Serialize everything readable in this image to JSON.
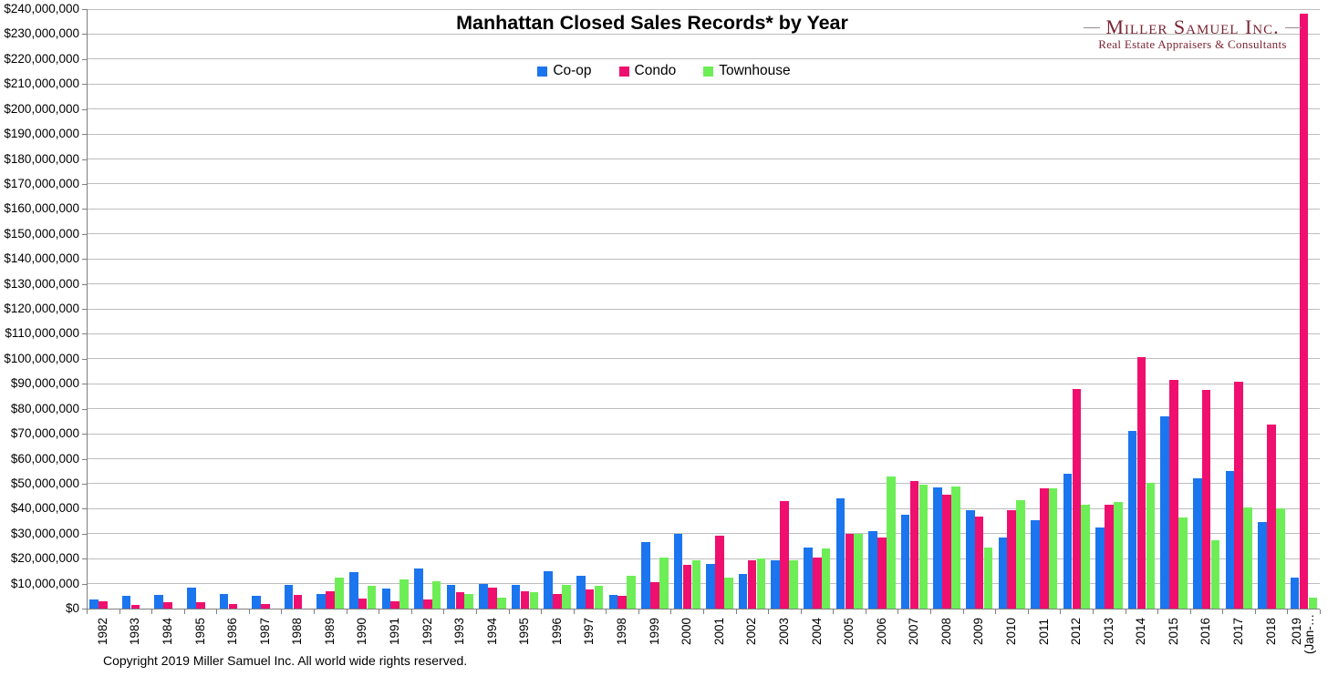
{
  "page": {
    "background": "#ffffff"
  },
  "logo": {
    "name": "Miller Samuel Inc.",
    "tagline": "Real Estate Appraisers & Consultants",
    "color": "#7b2433"
  },
  "footer": {
    "copyright": "Copyright 2019 Miller Samuel Inc.  All world wide rights reserved."
  },
  "chart_data": {
    "type": "bar",
    "title": "Manhattan Closed Sales Records* by Year",
    "xlabel": "",
    "ylabel": "",
    "ylim": [
      0,
      240000000
    ],
    "y_tick_step": 10000000,
    "grid": true,
    "legend_position": "top-center",
    "y_tick_labels": [
      "$0",
      "$10,000,000",
      "$20,000,000",
      "$30,000,000",
      "$40,000,000",
      "$50,000,000",
      "$60,000,000",
      "$70,000,000",
      "$80,000,000",
      "$90,000,000",
      "$100,000,000",
      "$110,000,000",
      "$120,000,000",
      "$130,000,000",
      "$140,000,000",
      "$150,000,000",
      "$160,000,000",
      "$170,000,000",
      "$180,000,000",
      "$190,000,000",
      "$200,000,000",
      "$210,000,000",
      "$220,000,000",
      "$230,000,000",
      "$240,000,000"
    ],
    "categories": [
      "1982",
      "1983",
      "1984",
      "1985",
      "1986",
      "1987",
      "1988",
      "1989",
      "1990",
      "1991",
      "1992",
      "1993",
      "1994",
      "1995",
      "1996",
      "1997",
      "1998",
      "1999",
      "2000",
      "2001",
      "2002",
      "2003",
      "2004",
      "2005",
      "2006",
      "2007",
      "2008",
      "2009",
      "2010",
      "2011",
      "2012",
      "2013",
      "2014",
      "2015",
      "2016",
      "2017",
      "2018",
      "2019 (Jan-…"
    ],
    "series": [
      {
        "name": "Co-op",
        "color": "#1b75ee",
        "values": [
          3500000,
          5000000,
          5500000,
          8500000,
          6000000,
          5000000,
          9500000,
          6000000,
          14500000,
          8000000,
          16000000,
          9500000,
          10000000,
          9500000,
          15000000,
          13000000,
          5500000,
          26500000,
          30000000,
          18000000,
          14000000,
          19500000,
          24500000,
          44000000,
          31000000,
          37500000,
          48500000,
          39500000,
          28500000,
          35500000,
          54000000,
          32500000,
          71000000,
          77000000,
          52000000,
          55000000,
          34500000,
          12500000
        ]
      },
      {
        "name": "Condo",
        "color": "#ef0f6e",
        "values": [
          3000000,
          1500000,
          2500000,
          2500000,
          2000000,
          2000000,
          5500000,
          7000000,
          4000000,
          3000000,
          3500000,
          6500000,
          8500000,
          7000000,
          6000000,
          7500000,
          5000000,
          10500000,
          17500000,
          29000000,
          19500000,
          43000000,
          20500000,
          30000000,
          28500000,
          51000000,
          45500000,
          37000000,
          39500000,
          48000000,
          88000000,
          41500000,
          100500000,
          91500000,
          87500000,
          91000000,
          73500000,
          238000000
        ]
      },
      {
        "name": "Townhouse",
        "color": "#6dee57",
        "values": [
          null,
          null,
          null,
          null,
          null,
          null,
          null,
          12500000,
          9000000,
          11500000,
          11000000,
          6000000,
          4500000,
          6500000,
          9500000,
          9000000,
          13000000,
          20500000,
          19500000,
          12500000,
          20000000,
          19500000,
          24000000,
          30000000,
          53000000,
          49500000,
          49000000,
          24500000,
          43500000,
          48000000,
          41500000,
          42500000,
          50500000,
          36500000,
          27500000,
          40500000,
          40000000,
          4500000
        ]
      }
    ]
  }
}
